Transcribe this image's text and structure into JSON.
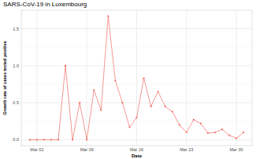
{
  "chart_data": {
    "type": "line",
    "title": "SARS-CoV-19 in Luxembourg",
    "x_label": "Date",
    "y_label": "Growth rate of cases tested positive",
    "categories": [
      null,
      "Mar 02",
      null,
      null,
      null,
      null,
      null,
      null,
      "Mar 09",
      null,
      null,
      null,
      null,
      null,
      null,
      "Mar 16",
      null,
      null,
      null,
      null,
      null,
      null,
      "Mar 23",
      null,
      null,
      null,
      null,
      null,
      null,
      "Mar 30",
      null
    ],
    "values": [
      0,
      0,
      0,
      0,
      0,
      1.0,
      0,
      0.5,
      0,
      0.67,
      0.4,
      1.67,
      0.8,
      0.5,
      0.17,
      0.3,
      0.83,
      0.45,
      0.65,
      0.45,
      0.38,
      0.2,
      0.1,
      0.27,
      0.22,
      0.09,
      0.1,
      0.14,
      0.06,
      0.02,
      0.1
    ],
    "color": "#f26b63",
    "marker": "circle",
    "ylim": [
      -0.08,
      1.75
    ],
    "yticks": [
      {
        "value": 0,
        "label": "0.0"
      },
      {
        "value": 0.5,
        "label": "0.5"
      },
      {
        "value": 1,
        "label": "1.0"
      },
      {
        "value": 1.5,
        "label": "1.5"
      }
    ],
    "grid": true
  }
}
